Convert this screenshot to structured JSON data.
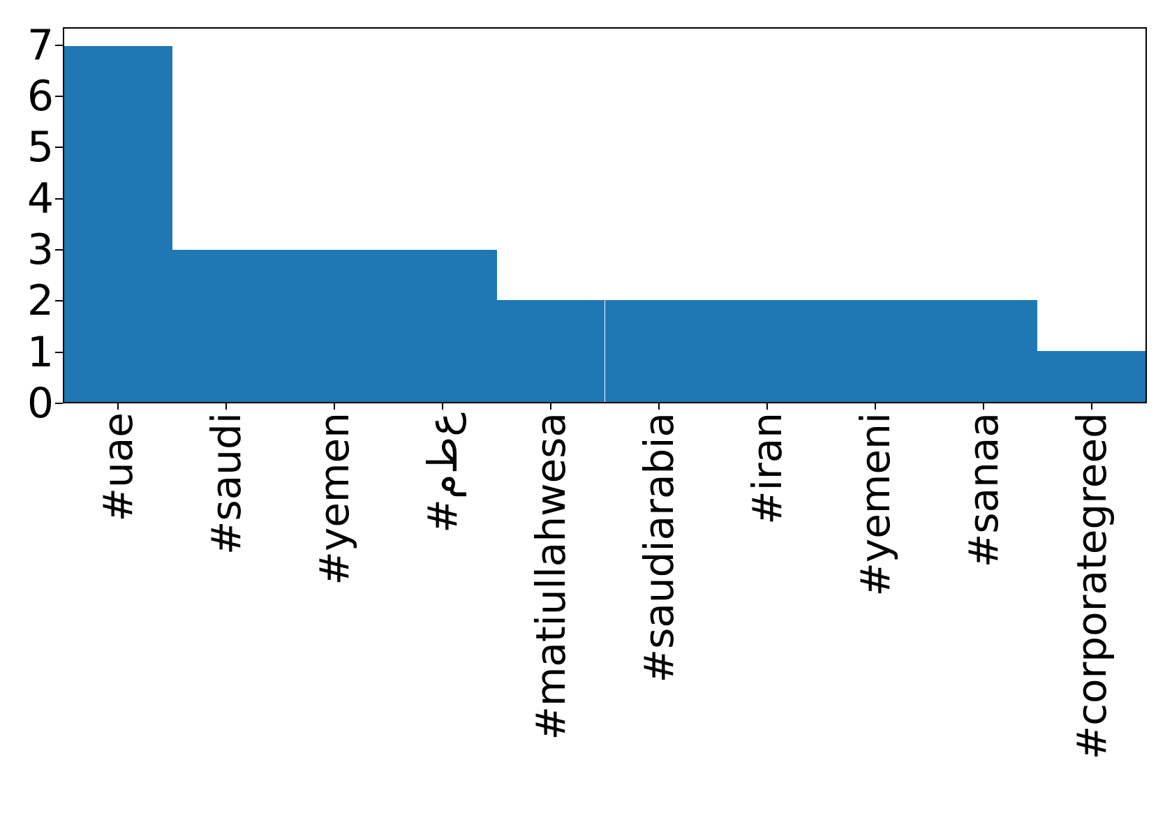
{
  "chart_data": {
    "type": "bar",
    "title": "",
    "xlabel": "",
    "ylabel": "",
    "categories": [
      "#uae",
      "#saudi",
      "#yemen",
      "#م‌ط‌ع",
      "#matiullahwesa",
      "#saudiarabia",
      "#iran",
      "#yemeni",
      "#sanaa",
      "#corporategreed"
    ],
    "values": [
      7,
      3,
      3,
      3,
      2,
      2,
      2,
      2,
      2,
      1
    ],
    "yticks": [
      0,
      1,
      2,
      3,
      4,
      5,
      6,
      7
    ],
    "ylim": [
      0,
      7.35
    ],
    "bar_width_fraction": 0.5,
    "xtick_rotation": 90,
    "grid": false,
    "legend": null,
    "colors": {
      "bar": "#1f77b4",
      "axis": "#000000",
      "text": "#000000",
      "background": "#ffffff"
    }
  }
}
